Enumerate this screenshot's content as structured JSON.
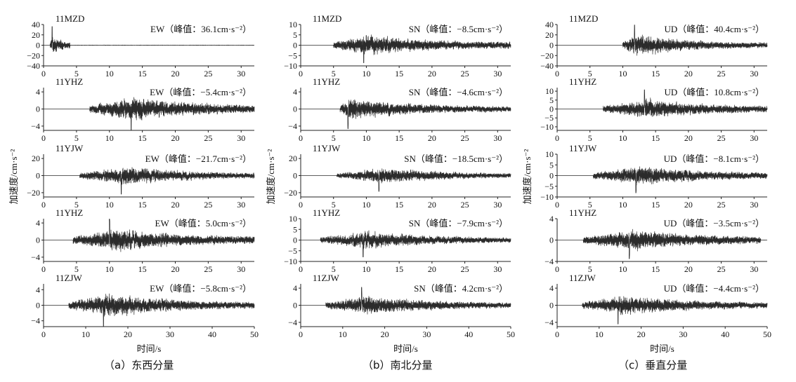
{
  "captions": [
    "（a）东西分量",
    "（b）南北分量",
    "（c）垂直分量"
  ],
  "chart_data": {
    "type": "line",
    "xlabel": "时间/s",
    "ylabel": "加速度/cm·s⁻²",
    "columns": [
      {
        "caption": "（a）东西分量",
        "panels": [
          {
            "station": "11MZD",
            "label": "EW（峰值：36.1cm·s⁻²）",
            "component": "EW",
            "peak": 36.1,
            "ylim": [
              -40,
              40
            ],
            "yticks": [
              -40,
              -20,
              0,
              20,
              40
            ],
            "yticklabels": [
              "−40",
              "−20",
              "0",
              "20",
              "40"
            ],
            "xlim": [
              0,
              32
            ],
            "xticks": [
              0,
              5,
              10,
              15,
              20,
              25,
              30
            ],
            "onset": 1.0,
            "peak_time": 1.3,
            "duration": 3.0,
            "tail": 0.2
          },
          {
            "station": "11YHZ",
            "label": "EW（峰值：−5.4cm·s⁻²）",
            "component": "EW",
            "peak": -5.4,
            "ylim": [
              -5,
              5
            ],
            "yticks": [
              -4,
              0,
              4
            ],
            "yticklabels": [
              "−4",
              "0",
              "4"
            ],
            "xlim": [
              0,
              32
            ],
            "xticks": [
              0,
              5,
              10,
              15,
              20,
              25,
              30
            ],
            "onset": 7.0,
            "peak_time": 13.3,
            "duration": 25.0,
            "tail": 0.12
          },
          {
            "station": "11YJW",
            "label": "EW（峰值：−21.7cm·s⁻²）",
            "component": "EW",
            "peak": -21.7,
            "ylim": [
              -25,
              25
            ],
            "yticks": [
              -20,
              0,
              20
            ],
            "yticklabels": [
              "−20",
              "0",
              "20"
            ],
            "xlim": [
              0,
              32
            ],
            "xticks": [
              0,
              5,
              10,
              15,
              20,
              25,
              30
            ],
            "onset": 5.5,
            "peak_time": 11.8,
            "duration": 26.5,
            "tail": 0.04
          },
          {
            "station": "11YHZ",
            "label": "EW（峰值：5.0cm·s⁻²）",
            "component": "EW",
            "peak": 5.0,
            "ylim": [
              -5,
              5
            ],
            "yticks": [
              -4,
              0,
              4
            ],
            "yticklabels": [
              "−4",
              "0",
              "4"
            ],
            "xlim": [
              0,
              32
            ],
            "xticks": [
              0,
              5,
              10,
              15,
              20,
              25,
              30
            ],
            "onset": 4.5,
            "peak_time": 10.0,
            "duration": 27.5,
            "tail": 0.15
          },
          {
            "station": "11ZJW",
            "label": "EW（峰值：−5.8cm·s⁻²）",
            "component": "EW",
            "peak": -5.8,
            "ylim": [
              -5.5,
              5.5
            ],
            "yticks": [
              -4,
              0,
              4
            ],
            "yticklabels": [
              "−4",
              "0",
              "4"
            ],
            "xlim": [
              0,
              50
            ],
            "xticks": [
              0,
              10,
              20,
              30,
              40,
              50
            ],
            "onset": 6.0,
            "peak_time": 14.2,
            "duration": 44.0,
            "tail": 0.07
          }
        ]
      },
      {
        "caption": "（b）南北分量",
        "panels": [
          {
            "station": "11MZD",
            "label": "SN（峰值：−8.5cm·s⁻²）",
            "component": "SN",
            "peak": -8.5,
            "ylim": [
              -10,
              10
            ],
            "yticks": [
              -10,
              -5,
              0,
              5,
              10
            ],
            "yticklabels": [
              "−10",
              "−5",
              "0",
              "5",
              "10"
            ],
            "xlim": [
              0,
              32
            ],
            "xticks": [
              0,
              5,
              10,
              15,
              20,
              25,
              30
            ],
            "onset": 5.0,
            "peak_time": 9.6,
            "duration": 27.0,
            "tail": 0.2
          },
          {
            "station": "11YHZ",
            "label": "SN（峰值：−4.6cm·s⁻²）",
            "component": "SN",
            "peak": -4.6,
            "ylim": [
              -5,
              5
            ],
            "yticks": [
              -4,
              0,
              4
            ],
            "yticklabels": [
              "−4",
              "0",
              "4"
            ],
            "xlim": [
              0,
              32
            ],
            "xticks": [
              0,
              5,
              10,
              15,
              20,
              25,
              30
            ],
            "onset": 6.0,
            "peak_time": 7.2,
            "duration": 26.0,
            "tail": 0.1
          },
          {
            "station": "11YJW",
            "label": "SN（峰值：−18.5cm·s⁻²）",
            "component": "SN",
            "peak": -18.5,
            "ylim": [
              -25,
              25
            ],
            "yticks": [
              -20,
              0,
              20
            ],
            "yticklabels": [
              "−20",
              "0",
              "20"
            ],
            "xlim": [
              0,
              32
            ],
            "xticks": [
              0,
              5,
              10,
              15,
              20,
              25,
              30
            ],
            "onset": 5.5,
            "peak_time": 11.9,
            "duration": 26.5,
            "tail": 0.04
          },
          {
            "station": "11YHZ",
            "label": "SN（峰值：−7.9cm·s⁻²）",
            "component": "SN",
            "peak": -7.9,
            "ylim": [
              -10,
              10
            ],
            "yticks": [
              -10,
              -5,
              0,
              5,
              10
            ],
            "yticklabels": [
              "−10",
              "−5",
              "0",
              "5",
              "10"
            ],
            "xlim": [
              0,
              32
            ],
            "xticks": [
              0,
              5,
              10,
              15,
              20,
              25,
              30
            ],
            "onset": 3.0,
            "peak_time": 9.5,
            "duration": 29.0,
            "tail": 0.08
          },
          {
            "station": "11ZJW",
            "label": "SN（峰值：4.2cm·s⁻²）",
            "component": "SN",
            "peak": 4.2,
            "ylim": [
              -5,
              5
            ],
            "yticks": [
              -4,
              0,
              4
            ],
            "yticklabels": [
              "−4",
              "0",
              "4"
            ],
            "xlim": [
              0,
              50
            ],
            "xticks": [
              0,
              10,
              20,
              30,
              40,
              50
            ],
            "onset": 6.0,
            "peak_time": 14.5,
            "duration": 44.0,
            "tail": 0.1
          }
        ]
      },
      {
        "caption": "（c）垂直分量",
        "panels": [
          {
            "station": "11MZD",
            "label": "UD（峰值：40.4cm·s⁻²）",
            "component": "UD",
            "peak": 40.4,
            "ylim": [
              -40,
              40
            ],
            "yticks": [
              -40,
              -20,
              0,
              20,
              40
            ],
            "yticklabels": [
              "−40",
              "−20",
              "0",
              "20",
              "40"
            ],
            "xlim": [
              0,
              32
            ],
            "xticks": [
              0,
              5,
              10,
              15,
              20,
              25,
              30
            ],
            "onset": 10.0,
            "peak_time": 11.8,
            "duration": 22.0,
            "tail": 0.04
          },
          {
            "station": "11YHZ",
            "label": "UD（峰值：10.8cm·s⁻²）",
            "component": "UD",
            "peak": 10.8,
            "ylim": [
              -12,
              12
            ],
            "yticks": [
              -10,
              -5,
              0,
              5,
              10
            ],
            "yticklabels": [
              "−10",
              "−5",
              "0",
              "5",
              "10"
            ],
            "xlim": [
              0,
              32
            ],
            "xticks": [
              0,
              5,
              10,
              15,
              20,
              25,
              30
            ],
            "onset": 7.0,
            "peak_time": 13.3,
            "duration": 25.0,
            "tail": 0.1
          },
          {
            "station": "11YJW",
            "label": "UD（峰值：−8.1cm·s⁻²）",
            "component": "UD",
            "peak": -8.1,
            "ylim": [
              -10,
              10
            ],
            "yticks": [
              -10,
              -5,
              0,
              5,
              10
            ],
            "yticklabels": [
              "−10",
              "−5",
              "0",
              "5",
              "10"
            ],
            "xlim": [
              0,
              32
            ],
            "xticks": [
              0,
              5,
              10,
              15,
              20,
              25,
              30
            ],
            "onset": 5.5,
            "peak_time": 12.0,
            "duration": 26.5,
            "tail": 0.15
          },
          {
            "station": "11YHZ",
            "label": "UD（峰值：−3.5cm·s⁻²）",
            "component": "UD",
            "peak": -3.5,
            "ylim": [
              -4,
              4
            ],
            "yticks": [
              -4,
              0,
              4
            ],
            "yticklabels": [
              "−4",
              "0",
              "4"
            ],
            "xlim": [
              0,
              32
            ],
            "xticks": [
              0,
              5,
              10,
              15,
              20,
              25,
              30
            ],
            "onset": 4.0,
            "peak_time": 11.0,
            "duration": 27.0,
            "tail": 0.2
          },
          {
            "station": "11ZJW",
            "label": "UD（峰值：−4.4cm·s⁻²）",
            "component": "UD",
            "peak": -4.4,
            "ylim": [
              -5,
              5
            ],
            "yticks": [
              -4,
              0,
              4
            ],
            "yticklabels": [
              "−4",
              "0",
              "4"
            ],
            "xlim": [
              0,
              50
            ],
            "xticks": [
              0,
              10,
              20,
              30,
              40,
              50
            ],
            "onset": 6.0,
            "peak_time": 14.5,
            "duration": 44.0,
            "tail": 0.12
          }
        ]
      }
    ]
  }
}
